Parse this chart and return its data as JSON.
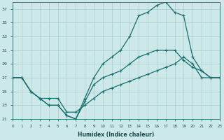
{
  "xlabel": "Humidex (Indice chaleur)",
  "ylabel": "",
  "bg_color": "#cce8e8",
  "line_color": "#1a6e6e",
  "grid_color": "#aacccc",
  "xlim": [
    0,
    23
  ],
  "ylim": [
    21,
    38
  ],
  "xticks": [
    0,
    1,
    2,
    3,
    4,
    5,
    6,
    7,
    8,
    9,
    10,
    11,
    12,
    13,
    14,
    15,
    16,
    17,
    18,
    19,
    20,
    21,
    22,
    23
  ],
  "yticks": [
    21,
    23,
    25,
    27,
    29,
    31,
    33,
    35,
    37
  ],
  "line1_x": [
    0,
    1,
    2,
    3,
    4,
    5,
    6,
    7,
    8,
    9,
    10,
    11,
    12,
    13,
    14,
    15,
    16,
    17,
    18,
    19,
    20,
    21,
    22,
    23
  ],
  "line1_y": [
    27,
    27,
    25,
    24,
    23,
    23,
    21.5,
    21,
    24,
    27,
    29,
    30,
    31,
    33,
    36,
    36.5,
    37.5,
    38,
    36.5,
    36,
    30,
    28,
    27,
    27
  ],
  "line2_x": [
    0,
    1,
    2,
    3,
    4,
    5,
    6,
    7,
    8,
    9,
    10,
    11,
    12,
    13,
    14,
    15,
    16,
    17,
    18,
    19,
    20,
    21,
    22,
    23
  ],
  "line2_y": [
    27,
    27,
    25,
    24,
    23,
    23,
    21.5,
    21,
    23.5,
    26,
    27,
    27.5,
    28,
    29,
    30,
    30.5,
    31,
    31,
    31,
    29.5,
    28.5,
    28,
    27,
    27
  ],
  "line3_x": [
    0,
    1,
    2,
    3,
    4,
    5,
    6,
    7,
    8,
    9,
    10,
    11,
    12,
    13,
    14,
    15,
    16,
    17,
    18,
    19,
    20,
    21,
    22,
    23
  ],
  "line3_y": [
    27,
    27,
    25,
    24,
    24,
    24,
    22,
    22,
    23,
    24,
    25,
    25.5,
    26,
    26.5,
    27,
    27.5,
    28,
    28.5,
    29,
    30,
    29,
    27,
    27,
    27
  ]
}
